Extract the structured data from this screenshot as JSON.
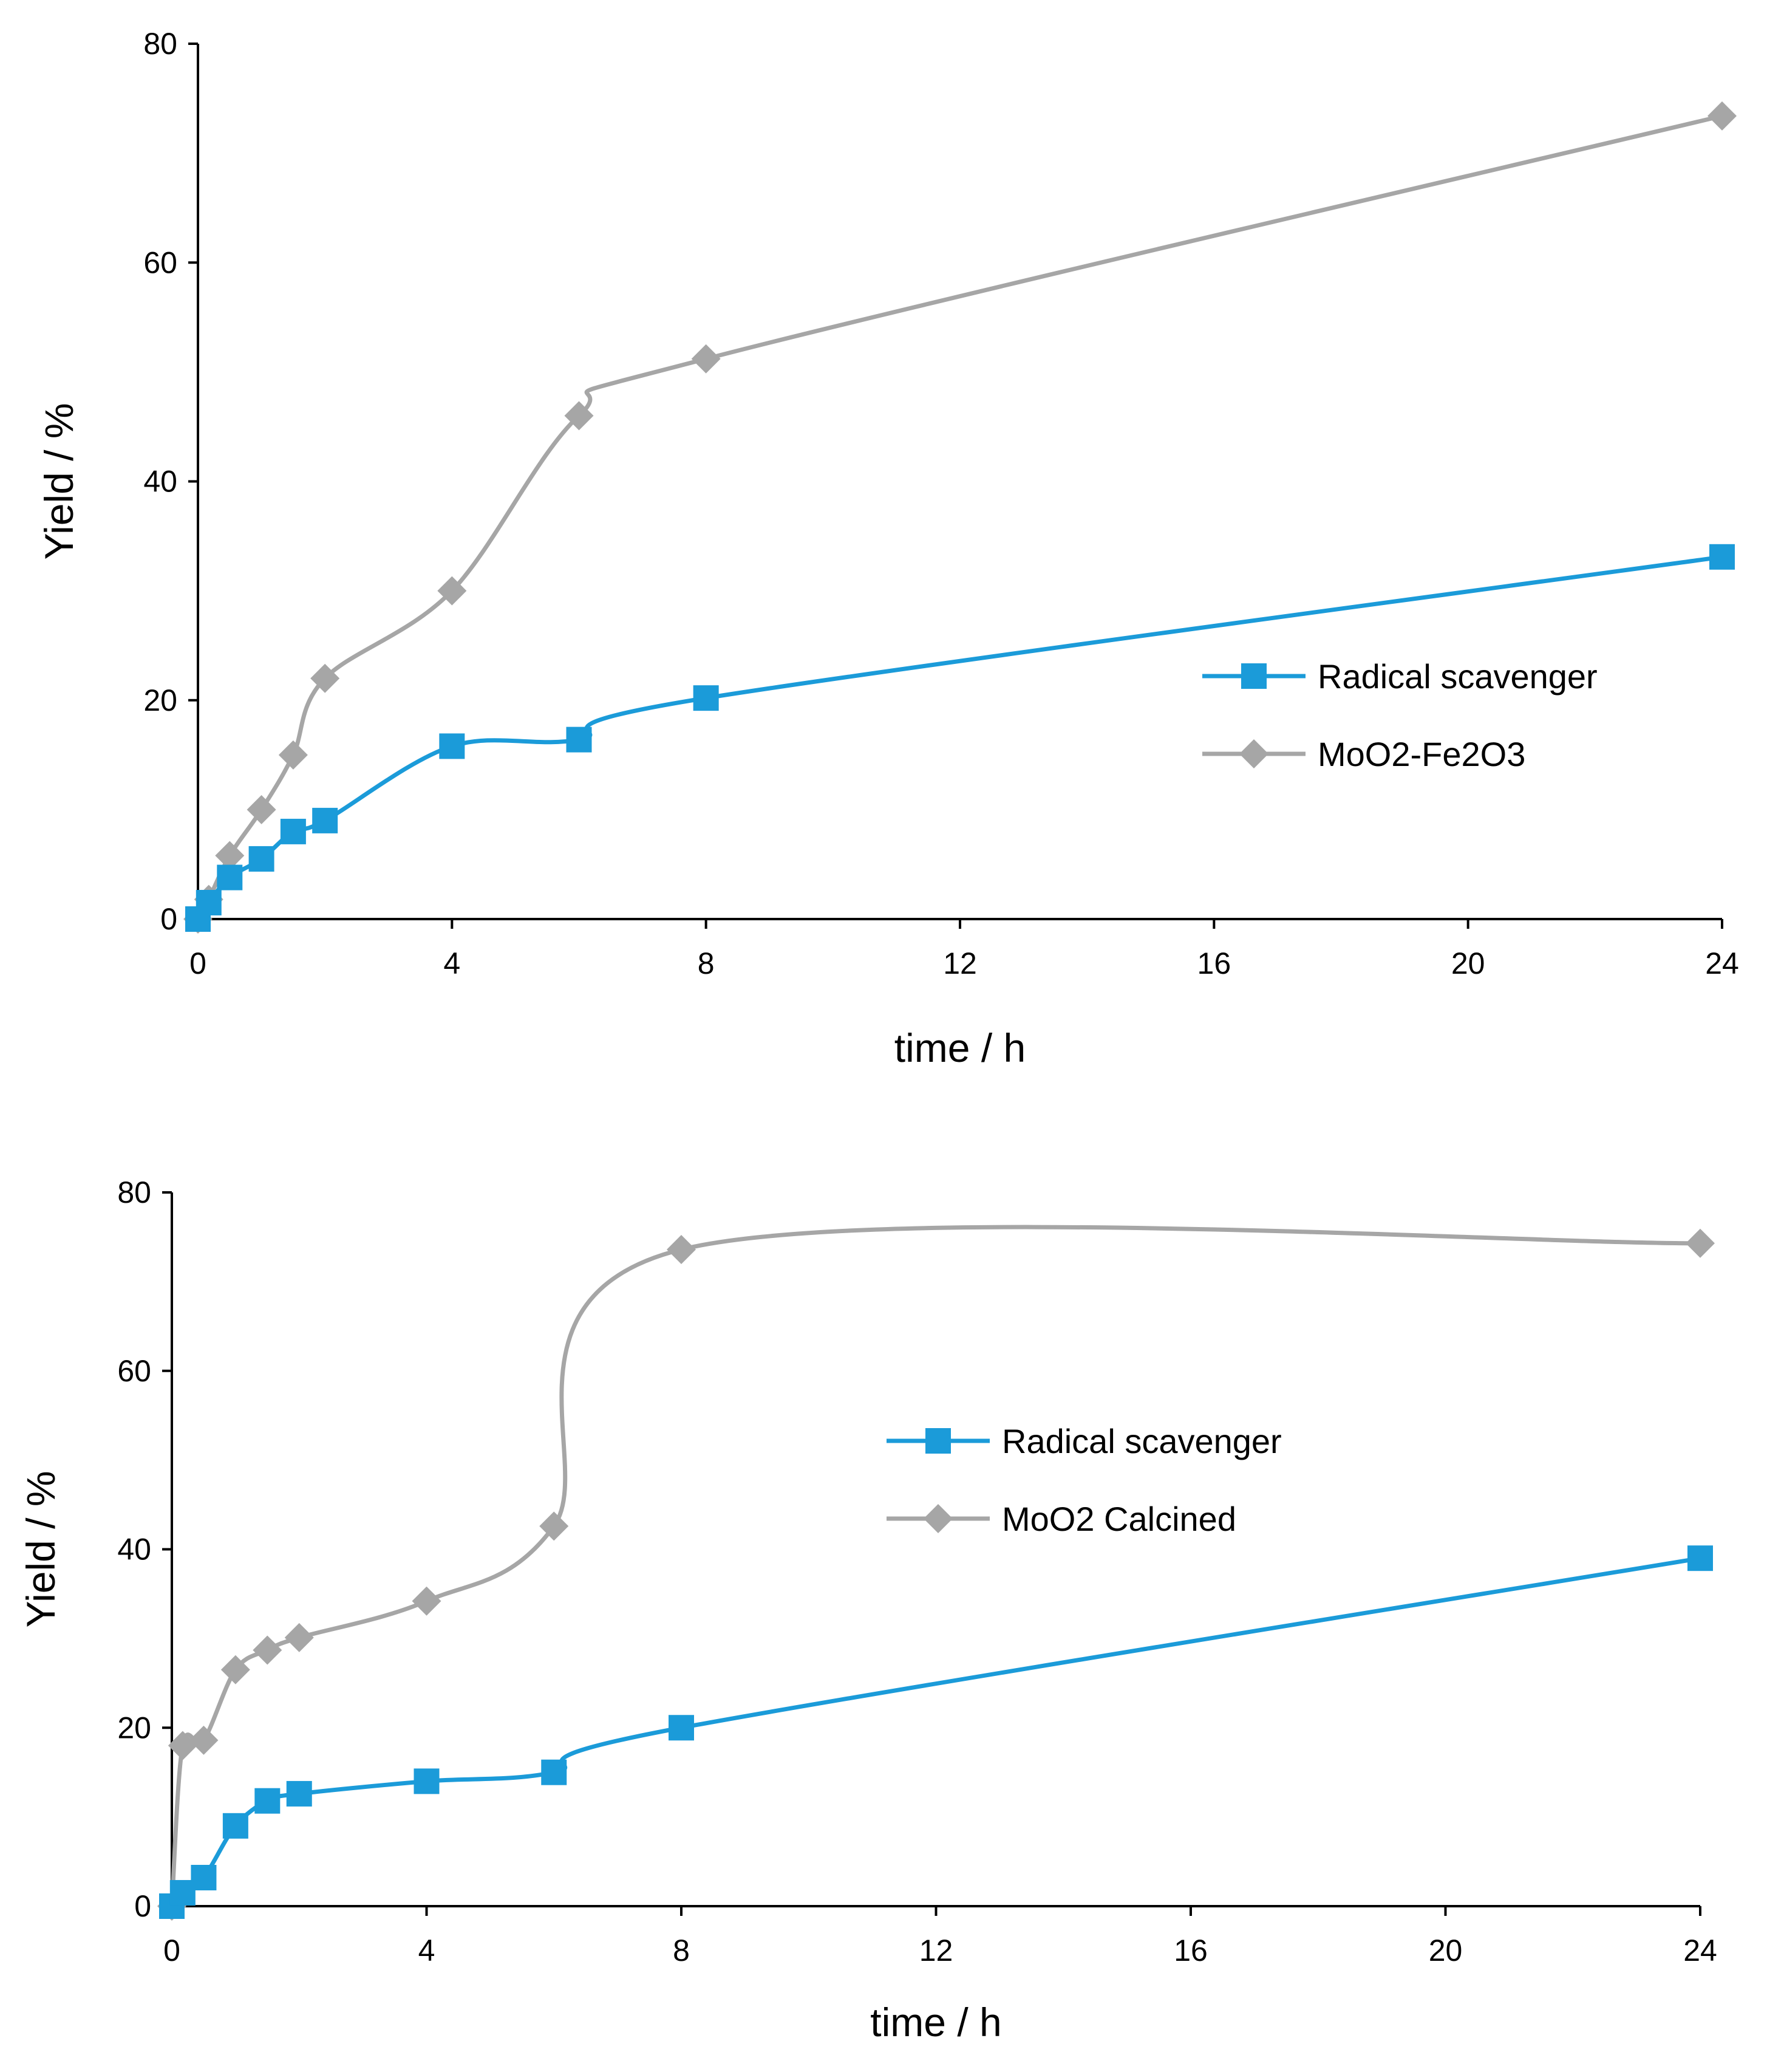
{
  "colors": {
    "scavenger": "#1b9bd9",
    "catalyst": "#a6a6a6",
    "axis": "#000000"
  },
  "chart_data": [
    {
      "type": "line",
      "xlabel": "time / h",
      "ylabel": "Yield / %",
      "xlim": [
        0,
        24
      ],
      "ylim": [
        0,
        80
      ],
      "xticks": [
        0,
        4,
        8,
        12,
        16,
        20,
        24
      ],
      "yticks": [
        0,
        20,
        40,
        60,
        80
      ],
      "grid": false,
      "legend_position": "center-right",
      "series": [
        {
          "name": "Radical scavenger",
          "marker": "square",
          "color_key": "scavenger",
          "x": [
            0,
            0.17,
            0.5,
            1,
            1.5,
            2,
            4,
            6,
            8,
            24
          ],
          "y": [
            0,
            1.5,
            3.8,
            5.5,
            8,
            9,
            15.8,
            16.4,
            20.2,
            33.1
          ]
        },
        {
          "name": "MoO2-Fe2O3",
          "marker": "diamond",
          "color_key": "catalyst",
          "x": [
            0,
            0.17,
            0.5,
            1,
            1.5,
            2,
            4,
            6,
            8,
            24
          ],
          "y": [
            0,
            1.8,
            5.8,
            10,
            15,
            22,
            30,
            46,
            51.2,
            73.4
          ]
        }
      ]
    },
    {
      "type": "line",
      "xlabel": "time / h",
      "ylabel": "Yield / %",
      "xlim": [
        0,
        24
      ],
      "ylim": [
        0,
        80
      ],
      "xticks": [
        0,
        4,
        8,
        12,
        16,
        20,
        24
      ],
      "yticks": [
        0,
        20,
        40,
        60,
        80
      ],
      "grid": false,
      "legend_position": "center",
      "series": [
        {
          "name": "Radical scavenger",
          "marker": "square",
          "color_key": "scavenger",
          "x": [
            0,
            0.17,
            0.5,
            1,
            1.5,
            2,
            4,
            6,
            8,
            24
          ],
          "y": [
            0,
            1.5,
            3.2,
            9,
            11.8,
            12.6,
            14,
            15,
            20,
            39
          ]
        },
        {
          "name": "MoO2 Calcined",
          "marker": "diamond",
          "color_key": "catalyst",
          "x": [
            0,
            0.17,
            0.5,
            1,
            1.5,
            2,
            4,
            6,
            8,
            24
          ],
          "y": [
            0,
            18,
            18.6,
            26.5,
            28.7,
            30.1,
            34.2,
            42.6,
            73.6,
            74.3
          ]
        }
      ]
    }
  ]
}
